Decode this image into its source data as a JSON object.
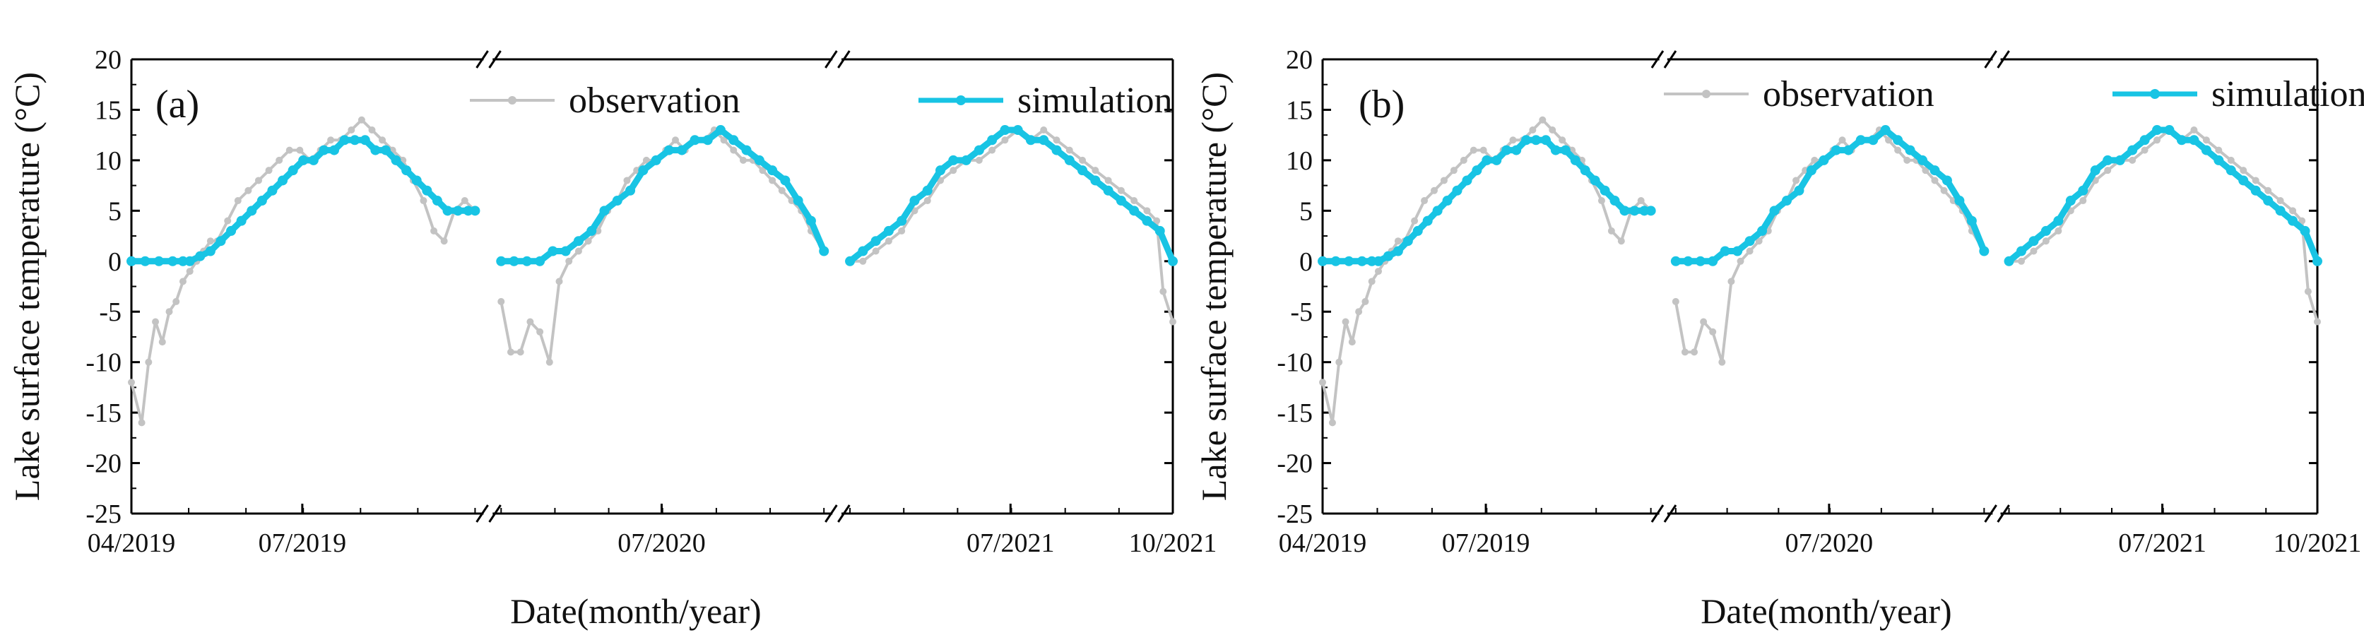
{
  "chart_data": [
    {
      "type": "line",
      "panel_label": "(a)",
      "ylabel": "Lake surface temperature (°C)",
      "xlabel": "Date(month/year)",
      "ylim": [
        -25,
        20
      ],
      "yticks": [
        -25,
        -20,
        -15,
        -10,
        -5,
        0,
        5,
        10,
        15,
        20
      ],
      "x_segments": [
        {
          "start": "2019-04",
          "end": "2019-10",
          "ticks": [
            {
              "date": "2019-04-01",
              "label": "04/2019"
            },
            {
              "date": "2019-07-01",
              "label": "07/2019"
            }
          ]
        },
        {
          "start": "2020-04",
          "end": "2020-10",
          "ticks": [
            {
              "date": "2020-07-01",
              "label": "07/2020"
            }
          ]
        },
        {
          "start": "2021-04",
          "end": "2021-10",
          "ticks": [
            {
              "date": "2021-07-01",
              "label": "07/2021"
            },
            {
              "date": "2021-10-01",
              "label": "10/2021"
            }
          ]
        }
      ],
      "legend": [
        "observation",
        "simulation"
      ],
      "series": [
        {
          "name": "observation",
          "color": "#c3c3c3",
          "segments": [
            {
              "x": [
                0,
                0.03,
                0.05,
                0.07,
                0.09,
                0.11,
                0.13,
                0.15,
                0.17,
                0.19,
                0.21,
                0.23,
                0.25,
                0.28,
                0.31,
                0.34,
                0.37,
                0.4,
                0.43,
                0.46,
                0.49,
                0.52,
                0.55,
                0.58,
                0.61,
                0.64,
                0.67,
                0.7,
                0.73,
                0.76,
                0.79,
                0.82,
                0.85,
                0.88,
                0.91,
                0.94,
                0.97,
                1.0
              ],
              "y": [
                -12,
                -16,
                -10,
                -6,
                -8,
                -5,
                -4,
                -2,
                -1,
                0,
                1,
                2,
                2,
                4,
                6,
                7,
                8,
                9,
                10,
                11,
                11,
                10,
                11,
                12,
                12,
                13,
                14,
                13,
                12,
                11,
                10,
                8,
                6,
                3,
                2,
                5,
                6,
                5
              ]
            },
            {
              "x": [
                0,
                0.03,
                0.06,
                0.09,
                0.12,
                0.15,
                0.18,
                0.21,
                0.24,
                0.27,
                0.3,
                0.33,
                0.36,
                0.39,
                0.42,
                0.45,
                0.48,
                0.51,
                0.54,
                0.57,
                0.6,
                0.63,
                0.66,
                0.69,
                0.72,
                0.75,
                0.78,
                0.81,
                0.84,
                0.87,
                0.9,
                0.93,
                0.96,
                1.0
              ],
              "y": [
                -4,
                -9,
                -9,
                -6,
                -7,
                -10,
                -2,
                0,
                1,
                2,
                3,
                5,
                6,
                8,
                9,
                10,
                10,
                11,
                12,
                11,
                12,
                12,
                13,
                12,
                11,
                10,
                10,
                9,
                8,
                7,
                6,
                5,
                3,
                1
              ]
            },
            {
              "x": [
                0,
                0.04,
                0.08,
                0.12,
                0.16,
                0.2,
                0.24,
                0.28,
                0.32,
                0.36,
                0.4,
                0.44,
                0.48,
                0.52,
                0.56,
                0.6,
                0.64,
                0.68,
                0.72,
                0.76,
                0.8,
                0.84,
                0.88,
                0.92,
                0.95,
                0.97,
                1.0
              ],
              "y": [
                0,
                0,
                1,
                2,
                3,
                5,
                6,
                8,
                9,
                10,
                10,
                11,
                12,
                13,
                12,
                13,
                12,
                11,
                10,
                9,
                8,
                7,
                6,
                5,
                4,
                -3,
                -6
              ]
            }
          ]
        },
        {
          "name": "simulation",
          "color": "#18c4e4",
          "segments": [
            {
              "x": [
                0,
                0.04,
                0.08,
                0.12,
                0.15,
                0.17,
                0.2,
                0.23,
                0.26,
                0.29,
                0.32,
                0.35,
                0.38,
                0.41,
                0.44,
                0.47,
                0.5,
                0.53,
                0.56,
                0.59,
                0.62,
                0.65,
                0.68,
                0.71,
                0.74,
                0.77,
                0.8,
                0.83,
                0.86,
                0.89,
                0.92,
                0.95,
                0.98,
                1.0
              ],
              "y": [
                0,
                0,
                0,
                0,
                0,
                0,
                0.5,
                1,
                2,
                3,
                4,
                5,
                6,
                7,
                8,
                9,
                10,
                10,
                11,
                11,
                12,
                12,
                12,
                11,
                11,
                10,
                9,
                8,
                7,
                6,
                5,
                5,
                5,
                5
              ]
            },
            {
              "x": [
                0,
                0.04,
                0.08,
                0.12,
                0.16,
                0.2,
                0.24,
                0.28,
                0.32,
                0.36,
                0.4,
                0.44,
                0.48,
                0.52,
                0.56,
                0.6,
                0.64,
                0.68,
                0.72,
                0.76,
                0.8,
                0.84,
                0.88,
                0.92,
                0.96,
                1.0
              ],
              "y": [
                0,
                0,
                0,
                0,
                1,
                1,
                2,
                3,
                5,
                6,
                7,
                9,
                10,
                11,
                11,
                12,
                12,
                13,
                12,
                11,
                10,
                9,
                8,
                6,
                4,
                1
              ]
            },
            {
              "x": [
                0,
                0.04,
                0.08,
                0.12,
                0.16,
                0.2,
                0.24,
                0.28,
                0.32,
                0.36,
                0.4,
                0.44,
                0.48,
                0.52,
                0.56,
                0.6,
                0.64,
                0.68,
                0.72,
                0.76,
                0.8,
                0.84,
                0.88,
                0.92,
                0.96,
                1.0
              ],
              "y": [
                0,
                1,
                2,
                3,
                4,
                6,
                7,
                9,
                10,
                10,
                11,
                12,
                13,
                13,
                12,
                12,
                11,
                10,
                9,
                8,
                7,
                6,
                5,
                4,
                3,
                0
              ]
            }
          ]
        }
      ]
    },
    {
      "type": "line",
      "panel_label": "(b)",
      "ylabel": "Lake surface temperature (°C)",
      "xlabel": "Date(month/year)",
      "ylim": [
        -25,
        20
      ],
      "yticks": [
        -25,
        -20,
        -15,
        -10,
        -5,
        0,
        5,
        10,
        15,
        20
      ],
      "x_segments": [
        {
          "start": "2019-04",
          "end": "2019-10",
          "ticks": [
            {
              "date": "2019-04-01",
              "label": "04/2019"
            },
            {
              "date": "2019-07-01",
              "label": "07/2019"
            }
          ]
        },
        {
          "start": "2020-04",
          "end": "2020-10",
          "ticks": [
            {
              "date": "2020-07-01",
              "label": "07/2020"
            }
          ]
        },
        {
          "start": "2021-04",
          "end": "2021-10",
          "ticks": [
            {
              "date": "2021-07-01",
              "label": "07/2021"
            },
            {
              "date": "2021-10-01",
              "label": "10/2021"
            }
          ]
        }
      ],
      "legend": [
        "observation",
        "simulation"
      ],
      "series": [
        {
          "name": "observation",
          "color": "#c3c3c3",
          "segments": [
            {
              "x": [
                0,
                0.03,
                0.05,
                0.07,
                0.09,
                0.11,
                0.13,
                0.15,
                0.17,
                0.19,
                0.21,
                0.23,
                0.25,
                0.28,
                0.31,
                0.34,
                0.37,
                0.4,
                0.43,
                0.46,
                0.49,
                0.52,
                0.55,
                0.58,
                0.61,
                0.64,
                0.67,
                0.7,
                0.73,
                0.76,
                0.79,
                0.82,
                0.85,
                0.88,
                0.91,
                0.94,
                0.97,
                1.0
              ],
              "y": [
                -12,
                -16,
                -10,
                -6,
                -8,
                -5,
                -4,
                -2,
                -1,
                0,
                1,
                2,
                2,
                4,
                6,
                7,
                8,
                9,
                10,
                11,
                11,
                10,
                11,
                12,
                12,
                13,
                14,
                13,
                12,
                11,
                10,
                8,
                6,
                3,
                2,
                5,
                6,
                5
              ]
            },
            {
              "x": [
                0,
                0.03,
                0.06,
                0.09,
                0.12,
                0.15,
                0.18,
                0.21,
                0.24,
                0.27,
                0.3,
                0.33,
                0.36,
                0.39,
                0.42,
                0.45,
                0.48,
                0.51,
                0.54,
                0.57,
                0.6,
                0.63,
                0.66,
                0.69,
                0.72,
                0.75,
                0.78,
                0.81,
                0.84,
                0.87,
                0.9,
                0.93,
                0.96,
                1.0
              ],
              "y": [
                -4,
                -9,
                -9,
                -6,
                -7,
                -10,
                -2,
                0,
                1,
                2,
                3,
                5,
                6,
                8,
                9,
                10,
                10,
                11,
                12,
                11,
                12,
                12,
                13,
                12,
                11,
                10,
                10,
                9,
                8,
                7,
                6,
                5,
                3,
                1
              ]
            },
            {
              "x": [
                0,
                0.04,
                0.08,
                0.12,
                0.16,
                0.2,
                0.24,
                0.28,
                0.32,
                0.36,
                0.4,
                0.44,
                0.48,
                0.52,
                0.56,
                0.6,
                0.64,
                0.68,
                0.72,
                0.76,
                0.8,
                0.84,
                0.88,
                0.92,
                0.95,
                0.97,
                1.0
              ],
              "y": [
                0,
                0,
                1,
                2,
                3,
                5,
                6,
                8,
                9,
                10,
                10,
                11,
                12,
                13,
                12,
                13,
                12,
                11,
                10,
                9,
                8,
                7,
                6,
                5,
                4,
                -3,
                -6
              ]
            }
          ]
        },
        {
          "name": "simulation",
          "color": "#18c4e4",
          "segments": [
            {
              "x": [
                0,
                0.04,
                0.08,
                0.12,
                0.15,
                0.17,
                0.2,
                0.23,
                0.26,
                0.29,
                0.32,
                0.35,
                0.38,
                0.41,
                0.44,
                0.47,
                0.5,
                0.53,
                0.56,
                0.59,
                0.62,
                0.65,
                0.68,
                0.71,
                0.74,
                0.77,
                0.8,
                0.83,
                0.86,
                0.89,
                0.92,
                0.95,
                0.98,
                1.0
              ],
              "y": [
                0,
                0,
                0,
                0,
                0,
                0,
                0.5,
                1,
                2,
                3,
                4,
                5,
                6,
                7,
                8,
                9,
                10,
                10,
                11,
                11,
                12,
                12,
                12,
                11,
                11,
                10,
                9,
                8,
                7,
                6,
                5,
                5,
                5,
                5
              ]
            },
            {
              "x": [
                0,
                0.04,
                0.08,
                0.12,
                0.16,
                0.2,
                0.24,
                0.28,
                0.32,
                0.36,
                0.4,
                0.44,
                0.48,
                0.52,
                0.56,
                0.6,
                0.64,
                0.68,
                0.72,
                0.76,
                0.8,
                0.84,
                0.88,
                0.92,
                0.96,
                1.0
              ],
              "y": [
                0,
                0,
                0,
                0,
                1,
                1,
                2,
                3,
                5,
                6,
                7,
                9,
                10,
                11,
                11,
                12,
                12,
                13,
                12,
                11,
                10,
                9,
                8,
                6,
                4,
                1
              ]
            },
            {
              "x": [
                0,
                0.04,
                0.08,
                0.12,
                0.16,
                0.2,
                0.24,
                0.28,
                0.32,
                0.36,
                0.4,
                0.44,
                0.48,
                0.52,
                0.56,
                0.6,
                0.64,
                0.68,
                0.72,
                0.76,
                0.8,
                0.84,
                0.88,
                0.92,
                0.96,
                1.0
              ],
              "y": [
                0,
                1,
                2,
                3,
                4,
                6,
                7,
                9,
                10,
                10,
                11,
                12,
                13,
                13,
                12,
                12,
                11,
                10,
                9,
                8,
                7,
                6,
                5,
                4,
                3,
                0
              ]
            }
          ]
        }
      ]
    }
  ]
}
